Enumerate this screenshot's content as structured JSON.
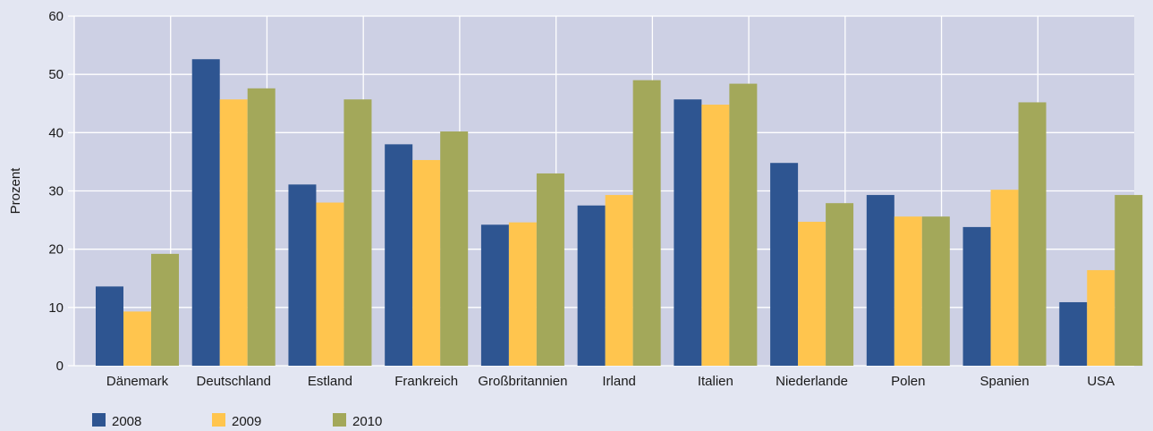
{
  "chart_data": {
    "type": "bar",
    "title": "",
    "xlabel": "",
    "ylabel": "Prozent",
    "ylim": [
      0,
      60
    ],
    "yticks": [
      0,
      10,
      20,
      30,
      40,
      50,
      60
    ],
    "grid": true,
    "legend_position": "bottom-left",
    "categories": [
      "Dänemark",
      "Deutschland",
      "Estland",
      "Frankreich",
      "Großbritannien",
      "Irland",
      "Italien",
      "Niederlande",
      "Polen",
      "Spanien",
      "USA"
    ],
    "series": [
      {
        "name": "2008",
        "color": "#2e5591",
        "values": [
          13.6,
          52.6,
          31.1,
          38.0,
          24.2,
          27.5,
          45.7,
          34.8,
          29.3,
          23.8,
          10.9
        ]
      },
      {
        "name": "2009",
        "color": "#ffc54e",
        "values": [
          9.3,
          45.7,
          28.0,
          35.3,
          24.6,
          29.3,
          44.8,
          24.7,
          25.6,
          30.2,
          16.4
        ]
      },
      {
        "name": "2010",
        "color": "#a3a85a",
        "values": [
          19.2,
          47.6,
          45.7,
          40.2,
          33.0,
          49.0,
          48.4,
          27.9,
          25.6,
          45.2,
          29.3
        ]
      }
    ],
    "colors": {
      "background": "#e3e6f2",
      "plot_area": "#cdd0e4",
      "gridline": "#ffffff"
    }
  }
}
